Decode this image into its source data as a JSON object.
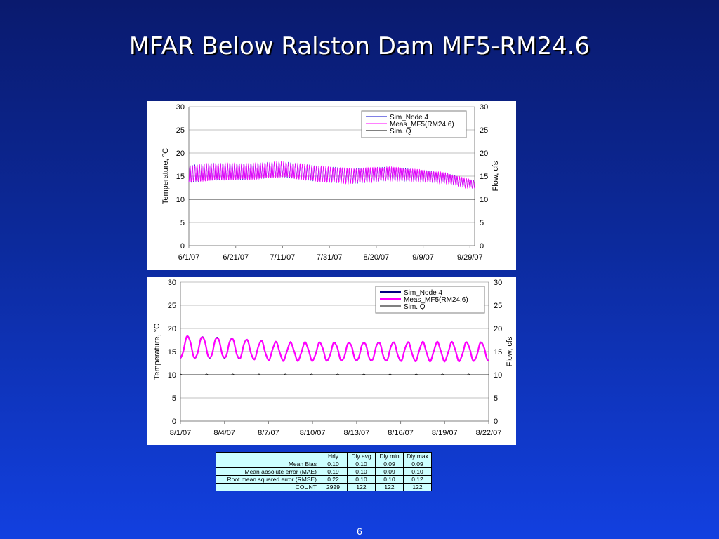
{
  "slide": {
    "title": "MFAR Below Ralston Dam MF5-RM24.6",
    "page_number": "6"
  },
  "chart_data": [
    {
      "type": "line",
      "ylabel": "Temperature, °C",
      "y2label": "Flow, cfs",
      "ylim": [
        0,
        30
      ],
      "y2lim": [
        0,
        30
      ],
      "yticks": [
        "0",
        "5",
        "10",
        "15",
        "20",
        "25",
        "30"
      ],
      "xlim": [
        0,
        122
      ],
      "xticks": [
        {
          "day": 0,
          "label": "6/1/07"
        },
        {
          "day": 20,
          "label": "6/21/07"
        },
        {
          "day": 40,
          "label": "7/11/07"
        },
        {
          "day": 60,
          "label": "7/31/07"
        },
        {
          "day": 80,
          "label": "8/20/07"
        },
        {
          "day": 100,
          "label": "9/9/07"
        },
        {
          "day": 120,
          "label": "9/29/07"
        }
      ],
      "grid": true,
      "legend_position": "top-right",
      "series": [
        {
          "name": "Sim_Node 4",
          "color": "#0000cc",
          "kind": "hourly",
          "daily_mean": [
            [
              0,
              15.5
            ],
            [
              10,
              16.0
            ],
            [
              25,
              16.0
            ],
            [
              40,
              16.5
            ],
            [
              55,
              15.5
            ],
            [
              70,
              15.0
            ],
            [
              85,
              15.5
            ],
            [
              100,
              15.0
            ],
            [
              110,
              14.5
            ],
            [
              118,
              13.5
            ],
            [
              122,
              13.2
            ]
          ],
          "daily_amplitude": [
            [
              0,
              1.8
            ],
            [
              10,
              1.8
            ],
            [
              40,
              1.6
            ],
            [
              60,
              1.6
            ],
            [
              90,
              1.4
            ],
            [
              115,
              1.0
            ],
            [
              122,
              0.8
            ]
          ]
        },
        {
          "name": "Meas_MF5(RM24.6)",
          "color": "#ff00ff",
          "kind": "hourly",
          "daily_mean": [
            [
              0,
              15.5
            ],
            [
              10,
              16.0
            ],
            [
              25,
              16.0
            ],
            [
              40,
              16.5
            ],
            [
              55,
              15.5
            ],
            [
              70,
              15.0
            ],
            [
              85,
              15.5
            ],
            [
              100,
              15.0
            ],
            [
              110,
              14.5
            ],
            [
              118,
              13.5
            ],
            [
              122,
              13.2
            ]
          ],
          "daily_amplitude": [
            [
              0,
              1.8
            ],
            [
              10,
              1.8
            ],
            [
              40,
              1.6
            ],
            [
              60,
              1.6
            ],
            [
              90,
              1.4
            ],
            [
              115,
              1.0
            ],
            [
              122,
              0.8
            ]
          ]
        },
        {
          "name": "Sim. Q",
          "color": "#000000",
          "kind": "flat",
          "value": 10
        }
      ]
    },
    {
      "type": "line",
      "ylabel": "Temperature, °C",
      "y2label": "Flow, cfs",
      "ylim": [
        0,
        30
      ],
      "y2lim": [
        0,
        30
      ],
      "yticks": [
        "0",
        "5",
        "10",
        "15",
        "20",
        "25",
        "30"
      ],
      "xlim": [
        0,
        21
      ],
      "xticks": [
        {
          "day": 0,
          "label": "8/1/07"
        },
        {
          "day": 3,
          "label": "8/4/07"
        },
        {
          "day": 6,
          "label": "8/7/07"
        },
        {
          "day": 9,
          "label": "8/10/07"
        },
        {
          "day": 12,
          "label": "8/13/07"
        },
        {
          "day": 15,
          "label": "8/16/07"
        },
        {
          "day": 18,
          "label": "8/19/07"
        },
        {
          "day": 21,
          "label": "8/22/07"
        }
      ],
      "grid": true,
      "legend_position": "top-right",
      "series": [
        {
          "name": "Sim_Node 4",
          "color": "#000080",
          "kind": "hourly",
          "daily_mean": [
            [
              0,
              16.0
            ],
            [
              3,
              15.8
            ],
            [
              7,
              15.0
            ],
            [
              14,
              15.0
            ],
            [
              21,
              15.0
            ]
          ],
          "daily_amplitude": [
            [
              0,
              2.4
            ],
            [
              3,
              2.2
            ],
            [
              7,
              1.9
            ],
            [
              14,
              2.0
            ],
            [
              21,
              2.0
            ]
          ]
        },
        {
          "name": "Meas_MF5(RM24.6)",
          "color": "#ff00ff",
          "kind": "hourly",
          "daily_mean": [
            [
              0,
              16.0
            ],
            [
              3,
              15.8
            ],
            [
              7,
              15.0
            ],
            [
              14,
              15.0
            ],
            [
              21,
              15.0
            ]
          ],
          "daily_amplitude": [
            [
              0,
              2.4
            ],
            [
              3,
              2.2
            ],
            [
              7,
              1.9
            ],
            [
              14,
              2.0
            ],
            [
              21,
              2.0
            ]
          ]
        },
        {
          "name": "Sim. Q",
          "color": "#000000",
          "kind": "flat",
          "value": 10
        }
      ]
    }
  ],
  "stats_table": {
    "headers": [
      "",
      "Hrly",
      "Dly avg",
      "Dly min",
      "Dly max"
    ],
    "rows": [
      {
        "label": "Mean Bias",
        "values": [
          "0.10",
          "0.10",
          "0.09",
          "0.09"
        ]
      },
      {
        "label": "Mean absolute error (MAE)",
        "values": [
          "0.19",
          "0.10",
          "0.09",
          "0.10"
        ]
      },
      {
        "label": "Root mean squared error (RMSE)",
        "values": [
          "0.22",
          "0.10",
          "0.10",
          "0.12"
        ]
      },
      {
        "label": "COUNT",
        "values": [
          "2929",
          "122",
          "122",
          "122"
        ]
      }
    ]
  }
}
